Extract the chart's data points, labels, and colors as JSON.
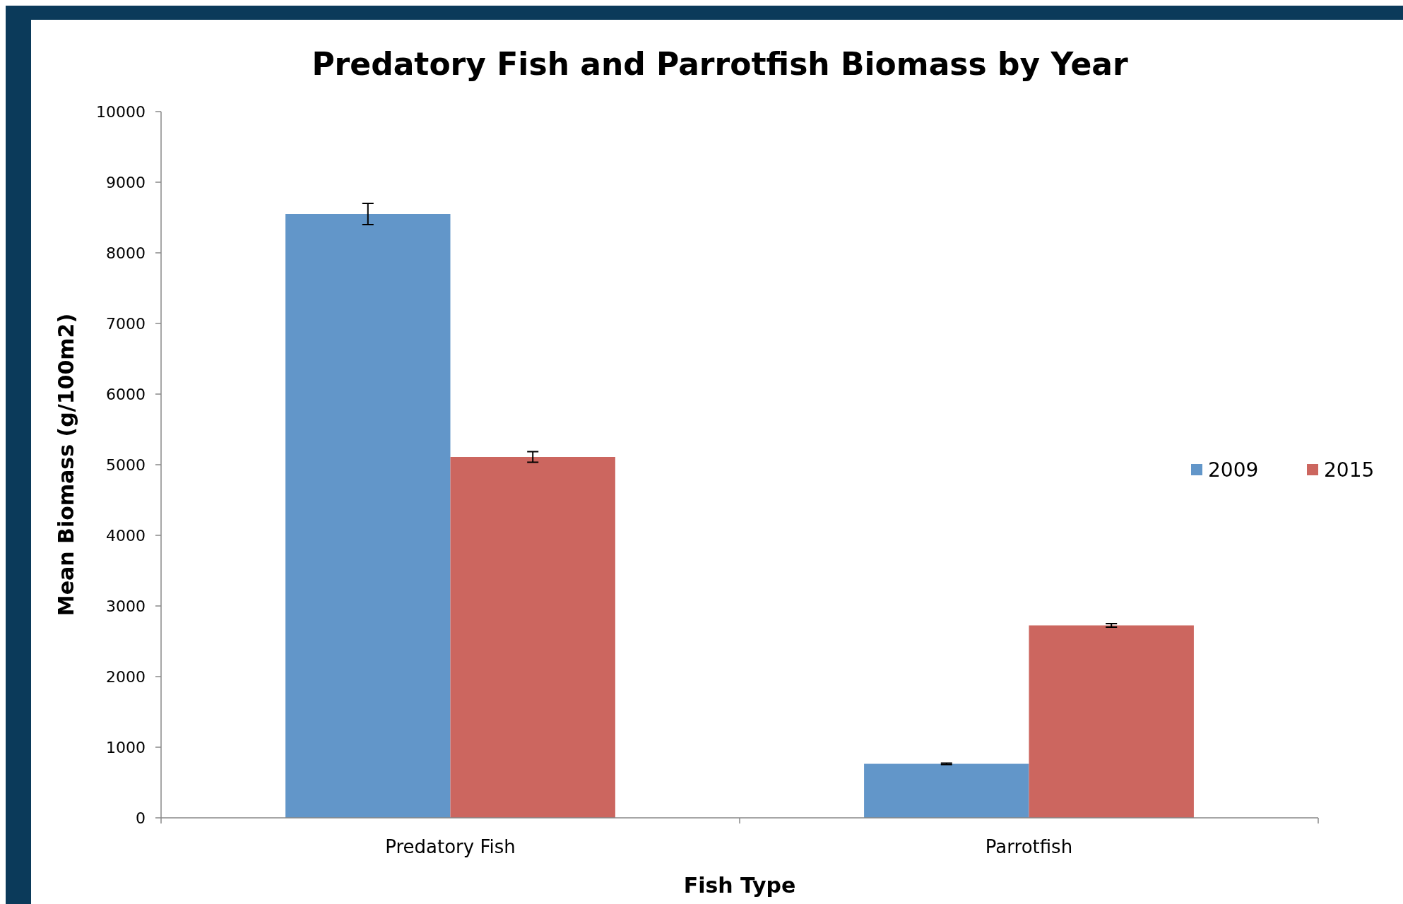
{
  "chart_data": {
    "type": "bar",
    "title": "Predatory Fish and Parrotfish Biomass by Year",
    "xlabel": "Fish Type",
    "ylabel": "Mean Biomass (g/100m2)",
    "categories": [
      "Predatory Fish",
      "Parrotfish"
    ],
    "series": [
      {
        "name": "2009",
        "color": "#6296c9",
        "values": [
          8550,
          765
        ],
        "errors": [
          150,
          10
        ]
      },
      {
        "name": "2015",
        "color": "#cc665f",
        "values": [
          5110,
          2725
        ],
        "errors": [
          75,
          25
        ]
      }
    ],
    "ylim": [
      0,
      10000
    ],
    "yticks": [
      0,
      1000,
      2000,
      3000,
      4000,
      5000,
      6000,
      7000,
      8000,
      9000,
      10000
    ],
    "grid": false,
    "legend": "right"
  }
}
